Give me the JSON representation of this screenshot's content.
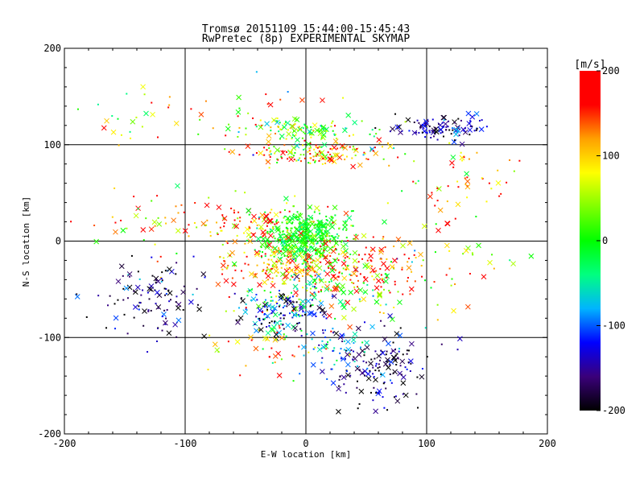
{
  "chart_data": {
    "type": "scatter",
    "title": "Tromsø 20151109 15:44:00-15:45:43",
    "subtitle": "RwPretec (8p) EXPERIMENTAL SKYMAP",
    "xlabel": "E-W location [km]",
    "ylabel": "N-S location [km]",
    "xlim": [
      -200,
      200
    ],
    "ylim": [
      -200,
      200
    ],
    "x_ticks": [
      -200,
      -100,
      0,
      100,
      200
    ],
    "y_ticks": [
      -200,
      -100,
      0,
      100,
      200
    ],
    "x_tick_labels": [
      "-200",
      "-100",
      "0",
      "100",
      "200"
    ],
    "y_tick_labels": [
      "-200",
      "-100",
      "0",
      "100",
      "200"
    ],
    "grid_lines_x": [
      -100,
      0,
      100
    ],
    "grid_lines_y": [
      -100,
      0,
      100
    ],
    "marker_types": [
      "dot",
      "cross"
    ],
    "colorbar": {
      "label": "[m/s]",
      "range": [
        -200,
        200
      ],
      "ticks": [
        -200,
        -100,
        0,
        100,
        200
      ],
      "tick_labels": [
        "-200",
        "-100",
        "0",
        "100",
        "200"
      ],
      "colormap": [
        "#000000",
        "#3a007a",
        "#0000ff",
        "#00b4ff",
        "#00ff80",
        "#00ff00",
        "#80ff00",
        "#ffff00",
        "#ffa000",
        "#ff0000",
        "#ff0000"
      ]
    },
    "clusters": [
      {
        "x": 0,
        "y": 5,
        "sx": 18,
        "sy": 12,
        "n": 420,
        "v": 0,
        "vs": 25
      },
      {
        "x": -10,
        "y": -25,
        "sx": 35,
        "sy": 12,
        "n": 220,
        "v": 130,
        "vs": 60
      },
      {
        "x": 15,
        "y": -45,
        "sx": 40,
        "sy": 18,
        "n": 160,
        "v": 10,
        "vs": 70
      },
      {
        "x": -20,
        "y": -75,
        "sx": 18,
        "sy": 12,
        "n": 140,
        "v": -140,
        "vs": 60
      },
      {
        "x": 10,
        "y": 92,
        "sx": 30,
        "sy": 6,
        "n": 150,
        "v": 90,
        "vs": 70
      },
      {
        "x": 0,
        "y": 115,
        "sx": 25,
        "sy": 6,
        "n": 90,
        "v": 20,
        "vs": 50
      },
      {
        "x": 115,
        "y": 117,
        "sx": 22,
        "sy": 6,
        "n": 110,
        "v": -150,
        "vs": 40
      },
      {
        "x": 60,
        "y": -130,
        "sx": 22,
        "sy": 20,
        "n": 150,
        "v": -170,
        "vs": 40
      },
      {
        "x": 25,
        "y": -110,
        "sx": 20,
        "sy": 14,
        "n": 60,
        "v": -90,
        "vs": 50
      },
      {
        "x": -130,
        "y": -60,
        "sx": 20,
        "sy": 20,
        "n": 110,
        "v": -170,
        "vs": 50
      },
      {
        "x": -50,
        "y": 125,
        "sx": 50,
        "sy": 15,
        "n": 60,
        "v": 120,
        "vs": 80
      },
      {
        "x": -50,
        "y": 20,
        "sx": 40,
        "sy": 12,
        "n": 120,
        "v": 140,
        "vs": 70
      },
      {
        "x": 130,
        "y": 60,
        "sx": 25,
        "sy": 20,
        "n": 50,
        "v": 110,
        "vs": 60
      },
      {
        "x": 80,
        "y": -10,
        "sx": 40,
        "sy": 30,
        "n": 40,
        "v": 60,
        "vs": 90
      },
      {
        "x": -150,
        "y": 20,
        "sx": 30,
        "sy": 20,
        "n": 25,
        "v": 60,
        "vs": 60
      },
      {
        "x": -30,
        "y": -100,
        "sx": 30,
        "sy": 20,
        "n": 50,
        "v": 110,
        "vs": 80
      },
      {
        "x": 60,
        "y": -30,
        "sx": 25,
        "sy": 20,
        "n": 70,
        "v": 170,
        "vs": 40
      },
      {
        "x": 150,
        "y": -20,
        "sx": 30,
        "sy": 20,
        "n": 20,
        "v": 60,
        "vs": 40
      },
      {
        "x": -150,
        "y": 130,
        "sx": 20,
        "sy": 15,
        "n": 15,
        "v": 20,
        "vs": 40
      }
    ]
  }
}
